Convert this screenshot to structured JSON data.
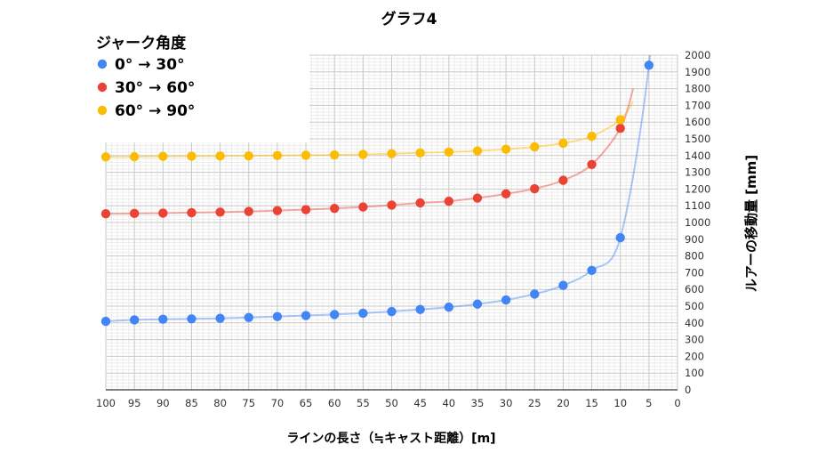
{
  "chart_data": {
    "type": "scatter",
    "title": "グラフ4",
    "xlabel": "ラインの長さ（≒キャスト距離）[m]",
    "ylabel": "ルアーの移動量 [mm]",
    "legend_title": "ジャーク角度",
    "legend_position": "top-left",
    "grid": true,
    "x_reversed": true,
    "xlim": [
      0,
      100
    ],
    "ylim": [
      0,
      2000
    ],
    "x_ticks": [
      100,
      95,
      90,
      85,
      80,
      75,
      70,
      65,
      60,
      55,
      50,
      45,
      40,
      35,
      30,
      25,
      20,
      15,
      10,
      5,
      0
    ],
    "y_ticks": [
      0,
      100,
      200,
      300,
      400,
      500,
      600,
      700,
      800,
      900,
      1000,
      1100,
      1200,
      1300,
      1400,
      1500,
      1600,
      1700,
      1800,
      1900,
      2000
    ],
    "x": [
      100,
      95,
      90,
      85,
      80,
      75,
      70,
      65,
      60,
      55,
      50,
      45,
      40,
      35,
      30,
      25,
      20,
      15,
      10,
      5
    ],
    "series": [
      {
        "name": "0° → 30°",
        "color": "#4285f4",
        "values": [
          409,
          418,
          422,
          424,
          427,
          432,
          438,
          444,
          450,
          458,
          468,
          480,
          494,
          512,
          537,
          572,
          624,
          714,
          909,
          1940
        ]
      },
      {
        "name": "30° → 60°",
        "color": "#ea4335",
        "values": [
          1052,
          1054,
          1056,
          1059,
          1062,
          1066,
          1071,
          1077,
          1084,
          1093,
          1104,
          1117,
          1127,
          1146,
          1171,
          1202,
          1252,
          1347,
          1563,
          null
        ]
      },
      {
        "name": "60° → 90°",
        "color": "#fbbc04",
        "values": [
          1392,
          1393,
          1395,
          1396,
          1397,
          1398,
          1400,
          1402,
          1404,
          1407,
          1411,
          1416,
          1421,
          1428,
          1438,
          1452,
          1474,
          1515,
          1614,
          null
        ]
      }
    ]
  }
}
